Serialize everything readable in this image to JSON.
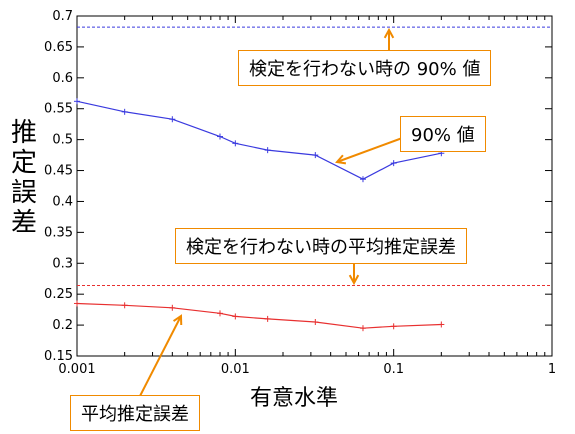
{
  "chart_data": {
    "type": "line",
    "title": "",
    "xlabel": "有意水準",
    "ylabel": "推定誤差",
    "xscale": "log",
    "xlim": [
      0.001,
      1
    ],
    "ylim": [
      0.15,
      0.7
    ],
    "grid": false,
    "x_ticks": [
      "0.001",
      "0.01",
      "0.1",
      "1"
    ],
    "y_ticks": [
      "0.15",
      "0.2",
      "0.25",
      "0.3",
      "0.35",
      "0.4",
      "0.45",
      "0.5",
      "0.55",
      "0.6",
      "0.65",
      "0.7"
    ],
    "series": [
      {
        "color": "#3a3adf",
        "x": [
          0.001,
          0.002,
          0.004,
          0.008,
          0.01,
          0.016,
          0.032,
          0.064,
          0.1,
          0.2
        ],
        "y": [
          0.562,
          0.545,
          0.533,
          0.505,
          0.494,
          0.483,
          0.475,
          0.436,
          0.462,
          0.478
        ]
      },
      {
        "color": "#e83030",
        "x": [
          0.001,
          0.002,
          0.004,
          0.008,
          0.01,
          0.016,
          0.032,
          0.064,
          0.1,
          0.2
        ],
        "y": [
          0.235,
          0.232,
          0.228,
          0.219,
          0.214,
          0.21,
          0.205,
          0.195,
          0.198,
          0.201
        ]
      }
    ],
    "reference_lines": [
      {
        "y": 0.682,
        "color": "#3a3adf",
        "style": "dashed"
      },
      {
        "y": 0.264,
        "color": "#e83030",
        "style": "dashed"
      }
    ],
    "annotations": [
      {
        "id": "ann1",
        "text": "検定を行わない時の 90% 値"
      },
      {
        "id": "ann2",
        "text": "90% 値"
      },
      {
        "id": "ann3",
        "text": "検定を行わない時の平均推定誤差"
      },
      {
        "id": "ann4",
        "text": "平均推定誤差"
      }
    ],
    "annotation_color": "#f08a00"
  }
}
